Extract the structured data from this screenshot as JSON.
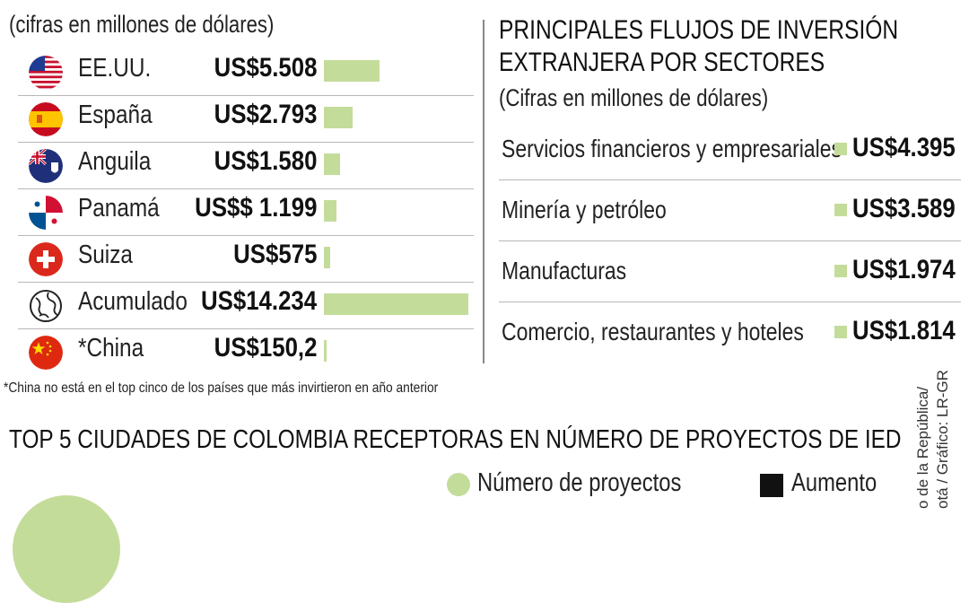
{
  "left_panel": {
    "subtitle": "(cifras en millones de dólares)",
    "footnote": "*China no está en el top cinco de los países que más invirtieron en año anterior"
  },
  "right_panel": {
    "title_line1": "PRINCIPALES FLUJOS DE INVERSIÓN",
    "title_line2": "EXTRANJERA POR SECTORES",
    "subtitle": "(Cifras en millones de dólares)"
  },
  "bottom": {
    "title": "TOP 5 CIUDADES DE COLOMBIA RECEPTORAS EN NÚMERO DE PROYECTOS DE IED",
    "legend": [
      {
        "label": "Número de proyectos",
        "color": "#c4dc9a"
      },
      {
        "label": "Aumento",
        "color": "#111111"
      }
    ],
    "source_line1": "o de la República/",
    "source_line2": "otá / Gráfico: LR-GR"
  },
  "chart_data": [
    {
      "type": "bar",
      "subtitle": "(cifras en millones de dólares)",
      "bar_color": "#c4dc9a",
      "categories": [
        "EE.UU.",
        "España",
        "Anguila",
        "Panamá",
        "Suiza",
        "Acumulado",
        "*China"
      ],
      "values": [
        5508,
        2793,
        1580,
        1199,
        575,
        14234,
        150.2
      ],
      "value_labels": [
        "US$5.508",
        "US$2.793",
        "US$1.580",
        "US$$ 1.199",
        "US$575",
        "US$14.234",
        "US$150,2"
      ],
      "flag_icons": [
        "us-flag-icon",
        "spain-flag-icon",
        "anguilla-flag-icon",
        "panama-flag-icon",
        "switzerland-flag-icon",
        "globe-icon",
        "china-flag-icon"
      ]
    },
    {
      "type": "table",
      "title": "PRINCIPALES FLUJOS DE INVERSIÓN EXTRANJERA POR SECTORES",
      "subtitle": "(Cifras en millones de dólares)",
      "categories": [
        "Servicios financieros y empresariales",
        "Minería y petróleo",
        "Manufacturas",
        "Comercio, restaurantes y hoteles"
      ],
      "values": [
        4395,
        3589,
        1974,
        1814
      ],
      "value_labels": [
        "US$4.395",
        "US$3.589",
        "US$1.974",
        "US$1.814"
      ]
    }
  ]
}
